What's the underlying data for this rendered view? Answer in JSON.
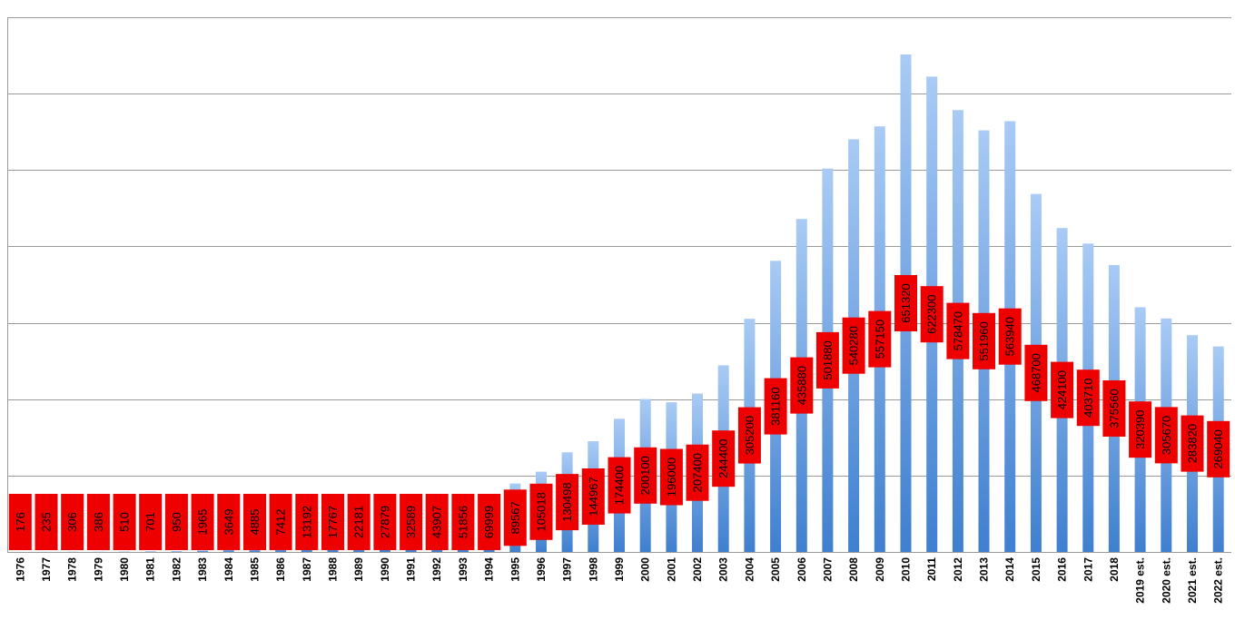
{
  "chart_data": {
    "type": "bar",
    "title": "",
    "xlabel": "",
    "ylabel": "",
    "ylim": [
      0,
      700000
    ],
    "grid": true,
    "legend": "none",
    "bar_color_top": "#a9cbf5",
    "bar_color_bottom": "#3f7fcf",
    "label_box_color": "#ee0000",
    "categories": [
      "1976",
      "1977",
      "1978",
      "1979",
      "1980",
      "1981",
      "1982",
      "1983",
      "1984",
      "1985",
      "1986",
      "1987",
      "1988",
      "1989",
      "1990",
      "1991",
      "1992",
      "1993",
      "1994",
      "1995",
      "1996",
      "1997",
      "1998",
      "1999",
      "2000",
      "2001",
      "2002",
      "2003",
      "2004",
      "2005",
      "2006",
      "2007",
      "2008",
      "2009",
      "2010",
      "2011",
      "2012",
      "2013",
      "2014",
      "2015",
      "2016",
      "2017",
      "2018",
      "2019 est.",
      "2020 est.",
      "2021 est.",
      "2022 est."
    ],
    "values": [
      176,
      235,
      306,
      386,
      510,
      701,
      950,
      1965,
      3649,
      4885,
      7412,
      13192,
      17767,
      22181,
      27879,
      32589,
      43907,
      51856,
      69999,
      89567,
      105018,
      130498,
      144967,
      174400,
      200100,
      196000,
      207400,
      244400,
      305200,
      381160,
      435880,
      501880,
      540280,
      557150,
      651320,
      622300,
      578470,
      551960,
      563940,
      468700,
      424100,
      403710,
      375560,
      320390,
      305670,
      283820,
      269040
    ],
    "data_labels": [
      "176",
      "235",
      "306",
      "386",
      "510",
      "701",
      "950",
      "1965",
      "3649",
      "4885",
      "7412",
      "13192",
      "17767",
      "22181",
      "27879",
      "32589",
      "43907",
      "51856",
      "69999",
      "89567",
      "105018",
      "130498",
      "144967",
      "174400",
      "200100",
      "196000",
      "207400",
      "244400",
      "305200",
      "381160",
      "435880",
      "501880",
      "540280",
      "557150",
      "651320",
      "622300",
      "578470",
      "551960",
      "563940",
      "468700",
      "424100",
      "403710",
      "375560",
      "320390",
      "305670",
      "283820",
      "269040"
    ]
  }
}
